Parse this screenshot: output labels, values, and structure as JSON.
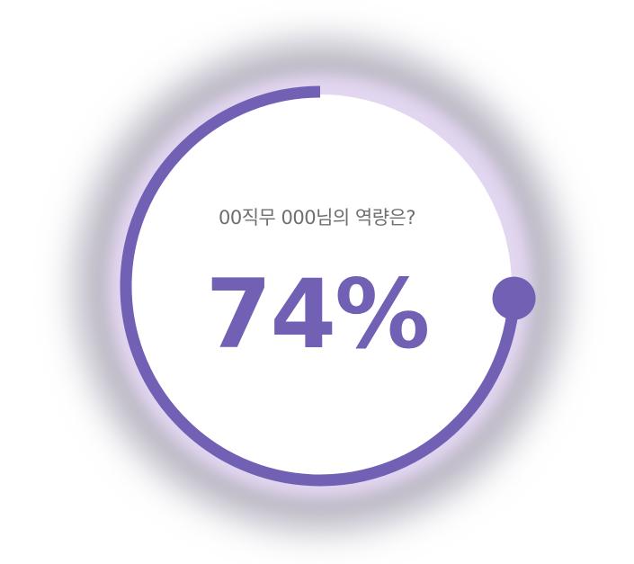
{
  "question": "00직무 000님의 역량은?",
  "percent_label": "74%",
  "progress": 0.74,
  "colors": {
    "accent": "#7160b3",
    "halo": "#e2d6f0",
    "shadow": "#b9b6c2",
    "center": "#ffffff",
    "question_text": "#6f6f6f"
  }
}
